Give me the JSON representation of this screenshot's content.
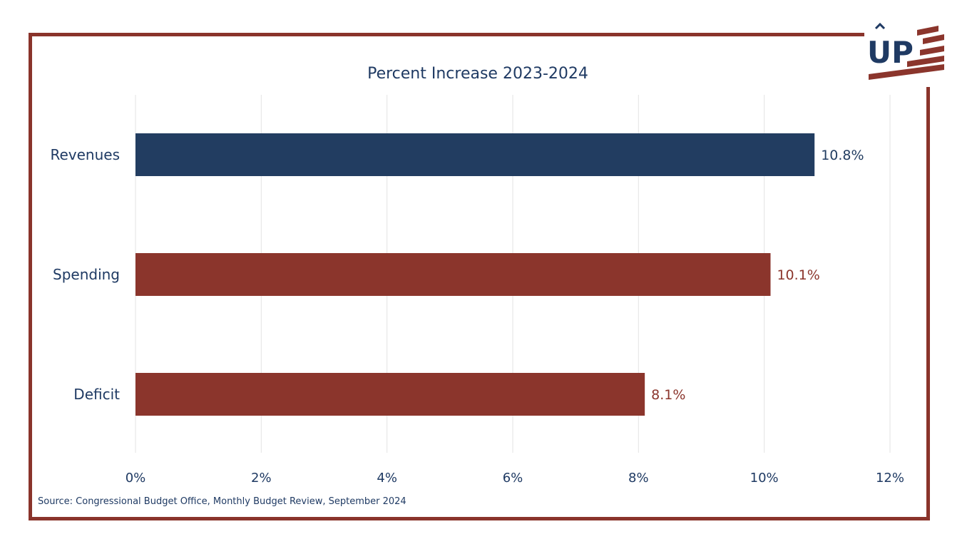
{
  "chart_data": {
    "type": "bar",
    "orientation": "horizontal",
    "title": "Percent Increase 2023-2024",
    "categories": [
      "Revenues",
      "Spending",
      "Deficit"
    ],
    "values": [
      10.8,
      10.1,
      8.1
    ],
    "value_labels": [
      "10.8%",
      "10.1%",
      "8.1%"
    ],
    "bar_colors": [
      "#223d61",
      "#8b352c",
      "#8b352c"
    ],
    "label_colors": [
      "#223d61",
      "#8b352c",
      "#8b352c"
    ],
    "xlim": [
      0,
      12
    ],
    "xticks": [
      0,
      2,
      4,
      6,
      8,
      10,
      12
    ],
    "xtick_labels": [
      "0%",
      "2%",
      "4%",
      "6%",
      "8%",
      "10%",
      "12%"
    ],
    "grid": true
  },
  "source": "Source: Congressional Budget Office, Monthly Budget Review, September 2024",
  "logo": {
    "text": "UP",
    "icon": "up-flag-logo"
  },
  "colors": {
    "frame": "#8a342b",
    "navy": "#1f3a63",
    "brick": "#8b352c",
    "grid": "#e3e3e3"
  }
}
